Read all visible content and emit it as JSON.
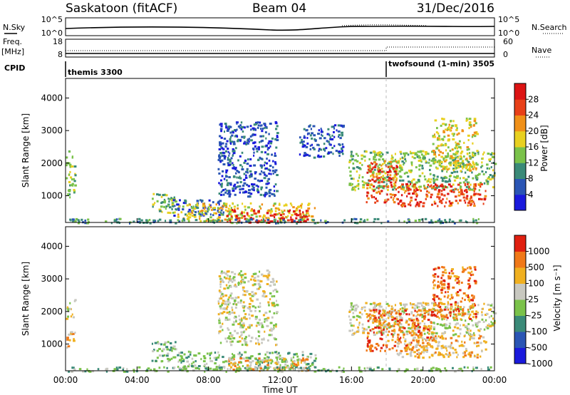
{
  "header": {
    "station": "Saskatoon (fitACF)",
    "beam": "Beam 04",
    "date": "31/Dec/2016"
  },
  "top_panels": {
    "nsky_label": "N.Sky",
    "nsky_ticks": [
      "10^5",
      "10^0"
    ],
    "nsky_right_ticks": [
      "10^5",
      "10^0"
    ],
    "nsearch_label": "N.Search",
    "freq_label_line1": "Freq.",
    "freq_label_line2": "[MHz]",
    "freq_ticks": [
      "18",
      "8"
    ],
    "nave_label": "Nave",
    "nave_ticks": [
      "60",
      "0"
    ],
    "cpid_label": "CPID",
    "cpid_segments": [
      {
        "label": "themis 3300",
        "start_hour": 0
      },
      {
        "label": "twofsound (1-min) 3505",
        "start_hour": 18
      }
    ]
  },
  "chart_data": [
    {
      "type": "heatmap",
      "name": "power",
      "ylabel": "Slant Range [km]",
      "xlim_hours": [
        0,
        24
      ],
      "ylim_km": [
        180,
        4600
      ],
      "y_ticks": [
        "1000",
        "2000",
        "3000",
        "4000"
      ],
      "colorbar_label": "Power [dB]",
      "colorbar_ticks": [
        "4",
        "8",
        "12",
        "16",
        "20",
        "24",
        "28"
      ],
      "colorbar_colors": [
        "#1a1adc",
        "#2a55b4",
        "#3a8a78",
        "#7ac24a",
        "#e8d020",
        "#f09018",
        "#e84018",
        "#dc1414"
      ],
      "regions": [
        {
          "x0": 0.0,
          "x1": 0.5,
          "y0": 900,
          "y1": 2400,
          "level": 3
        },
        {
          "x0": 4.8,
          "x1": 6.2,
          "y0": 500,
          "y1": 1100,
          "level": 3
        },
        {
          "x0": 6.0,
          "x1": 8.8,
          "y0": 400,
          "y1": 900,
          "level": 1
        },
        {
          "x0": 6.2,
          "x1": 14.0,
          "y0": 250,
          "y1": 800,
          "level": 4
        },
        {
          "x0": 9.0,
          "x1": 13.5,
          "y0": 200,
          "y1": 600,
          "level": 7
        },
        {
          "x0": 8.5,
          "x1": 11.8,
          "y0": 1000,
          "y1": 3300,
          "level": 1
        },
        {
          "x0": 13.0,
          "x1": 15.5,
          "y0": 2200,
          "y1": 3200,
          "level": 1
        },
        {
          "x0": 15.8,
          "x1": 24.0,
          "y0": 1200,
          "y1": 2400,
          "level": 3
        },
        {
          "x0": 16.8,
          "x1": 18.5,
          "y0": 800,
          "y1": 2100,
          "level": 6
        },
        {
          "x0": 18.5,
          "x1": 23.5,
          "y0": 700,
          "y1": 1400,
          "level": 6
        },
        {
          "x0": 20.5,
          "x1": 23.0,
          "y0": 1800,
          "y1": 3400,
          "level": 4
        },
        {
          "x0": 0.0,
          "x1": 24.0,
          "y0": 180,
          "y1": 320,
          "level": 2
        }
      ]
    },
    {
      "type": "heatmap",
      "name": "velocity",
      "ylabel": "Slant Range [km]",
      "xlabel": "Time UT",
      "xlim_hours": [
        0,
        24
      ],
      "ylim_km": [
        180,
        4600
      ],
      "x_ticks": [
        "00:00",
        "04:00",
        "08:00",
        "12:00",
        "16:00",
        "20:00",
        "00:00"
      ],
      "y_ticks": [
        "1000",
        "2000",
        "3000",
        "4000"
      ],
      "colorbar_label": "Velocity [m s⁻¹]",
      "colorbar_ticks": [
        "1000",
        "500",
        "100",
        "25",
        "-25",
        "-100",
        "-500",
        "-1000"
      ],
      "colorbar_colors": [
        "#1a1adc",
        "#2a55b4",
        "#3a8a78",
        "#7ac24a",
        "#c8c8c0",
        "#f0b020",
        "#f07818",
        "#e02010"
      ],
      "regions": [
        {
          "x0": 0.0,
          "x1": 0.5,
          "y0": 1800,
          "y1": 2400,
          "level": 4
        },
        {
          "x0": 0.0,
          "x1": 0.5,
          "y0": 900,
          "y1": 1400,
          "level": 5
        },
        {
          "x0": 4.8,
          "x1": 6.2,
          "y0": 500,
          "y1": 1100,
          "level": 3
        },
        {
          "x0": 6.2,
          "x1": 14.0,
          "y0": 250,
          "y1": 800,
          "level": 3
        },
        {
          "x0": 9.0,
          "x1": 13.5,
          "y0": 200,
          "y1": 600,
          "level": 5
        },
        {
          "x0": 8.5,
          "x1": 11.8,
          "y0": 1000,
          "y1": 3300,
          "level": 4
        },
        {
          "x0": 15.8,
          "x1": 24.0,
          "y0": 1300,
          "y1": 2300,
          "level": 4
        },
        {
          "x0": 16.8,
          "x1": 20.5,
          "y0": 800,
          "y1": 2100,
          "level": 6
        },
        {
          "x0": 18.5,
          "x1": 23.5,
          "y0": 600,
          "y1": 1300,
          "level": 5
        },
        {
          "x0": 20.5,
          "x1": 23.0,
          "y0": 1800,
          "y1": 3400,
          "level": 6
        },
        {
          "x0": 0.0,
          "x1": 24.0,
          "y0": 180,
          "y1": 320,
          "level": 3
        }
      ]
    }
  ]
}
